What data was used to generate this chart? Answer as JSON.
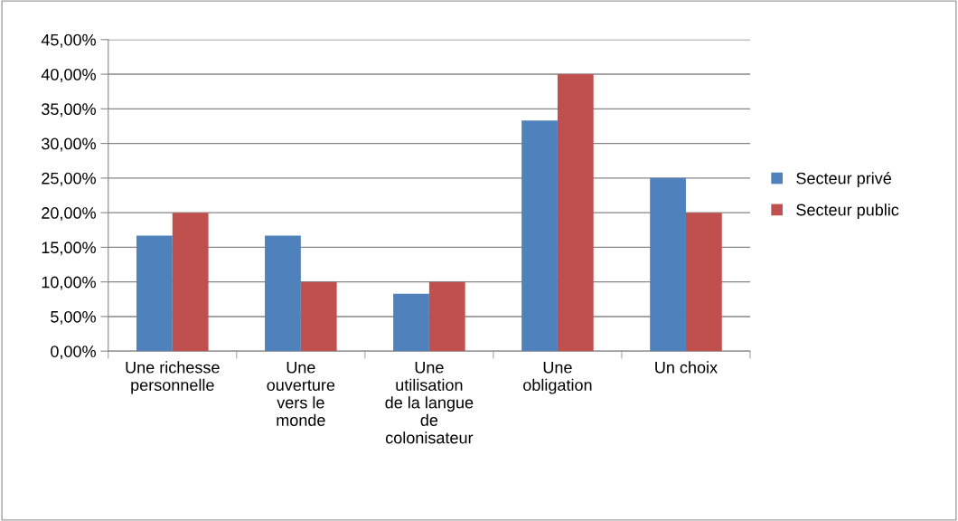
{
  "chart_data": {
    "type": "bar",
    "categories": [
      "Une richesse\npersonnelle",
      "Une\nouverture\nvers le\nmonde",
      "Une\nutilisation\nde la langue\nde\ncolonisateur",
      "Une\nobligation",
      "Un choix"
    ],
    "series": [
      {
        "name": "Secteur privé",
        "color": "#4f81bd",
        "values": [
          16.7,
          16.7,
          8.3,
          33.3,
          25
        ]
      },
      {
        "name": "Secteur public",
        "color": "#c0504d",
        "values": [
          20,
          10,
          10,
          40,
          20
        ]
      }
    ],
    "ylim": [
      0,
      45
    ],
    "yticks": [
      {
        "value": 0,
        "label": "0,00%"
      },
      {
        "value": 5,
        "label": "5,00%"
      },
      {
        "value": 10,
        "label": "10,00%"
      },
      {
        "value": 15,
        "label": "15,00%"
      },
      {
        "value": 20,
        "label": "20,00%"
      },
      {
        "value": 25,
        "label": "25,00%"
      },
      {
        "value": 30,
        "label": "30,00%"
      },
      {
        "value": 35,
        "label": "35,00%"
      },
      {
        "value": 40,
        "label": "40,00%"
      },
      {
        "value": 45,
        "label": "45,00%"
      }
    ],
    "grid": "y",
    "legend": "right"
  }
}
